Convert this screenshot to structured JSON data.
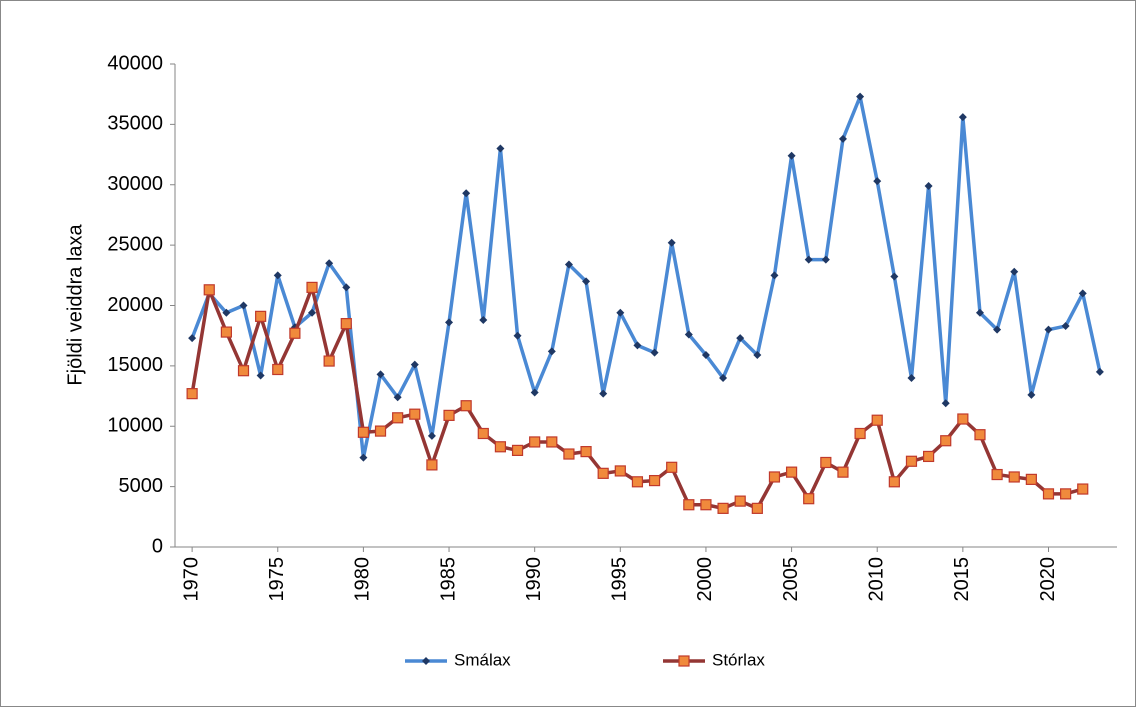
{
  "chart_data": {
    "type": "line",
    "y_label": "Fjöldi veiddra laxa",
    "x": [
      1970,
      1971,
      1972,
      1973,
      1974,
      1975,
      1976,
      1977,
      1978,
      1979,
      1980,
      1981,
      1982,
      1983,
      1984,
      1985,
      1986,
      1987,
      1988,
      1989,
      1990,
      1991,
      1992,
      1993,
      1994,
      1995,
      1996,
      1997,
      1998,
      1999,
      2000,
      2001,
      2002,
      2003,
      2004,
      2005,
      2006,
      2007,
      2008,
      2009,
      2010,
      2011,
      2012,
      2013,
      2014,
      2015,
      2016,
      2017,
      2018,
      2019,
      2020,
      2021,
      2022,
      2023
    ],
    "series": [
      {
        "name": "Smálax",
        "color": "#4a89d4",
        "marker_color": "#1f3864",
        "marker": "diamond",
        "values": [
          17300,
          21000,
          19400,
          20000,
          14200,
          22500,
          18200,
          19400,
          23500,
          21500,
          7400,
          14300,
          12400,
          15100,
          9200,
          18600,
          29300,
          18800,
          33000,
          17500,
          12800,
          16200,
          23400,
          22000,
          12700,
          19400,
          16700,
          16100,
          25200,
          17600,
          15900,
          14000,
          17300,
          15900,
          22500,
          32400,
          23800,
          23800,
          33800,
          37300,
          30300,
          22400,
          14000,
          29900,
          11900,
          35600,
          19400,
          18000,
          22800,
          12600,
          18000,
          18300,
          21000,
          14500
        ]
      },
      {
        "name": "Stórlax",
        "color": "#943634",
        "marker_color": "#f08a3c",
        "marker": "square",
        "values": [
          12700,
          21300,
          17800,
          14600,
          19100,
          14700,
          17700,
          21500,
          15400,
          18500,
          9500,
          9600,
          10700,
          11000,
          6800,
          10900,
          11700,
          9400,
          8300,
          8000,
          8700,
          8700,
          7700,
          7900,
          6100,
          6300,
          5400,
          5500,
          6600,
          3500,
          3500,
          3200,
          3800,
          3200,
          5800,
          6200,
          4000,
          7000,
          6200,
          9400,
          10500,
          5400,
          7100,
          7500,
          8800,
          10600,
          9300,
          6000,
          5800,
          5600,
          4400,
          4400,
          4800,
          null
        ]
      }
    ],
    "xlim": [
      1969,
      2024
    ],
    "xticks": [
      1970,
      1975,
      1980,
      1985,
      1990,
      1995,
      2000,
      2005,
      2010,
      2015,
      2020
    ],
    "ylim": [
      0,
      40000
    ],
    "yticks": [
      0,
      5000,
      10000,
      15000,
      20000,
      25000,
      30000,
      35000,
      40000
    ],
    "grid": false,
    "legend": "bottom"
  }
}
